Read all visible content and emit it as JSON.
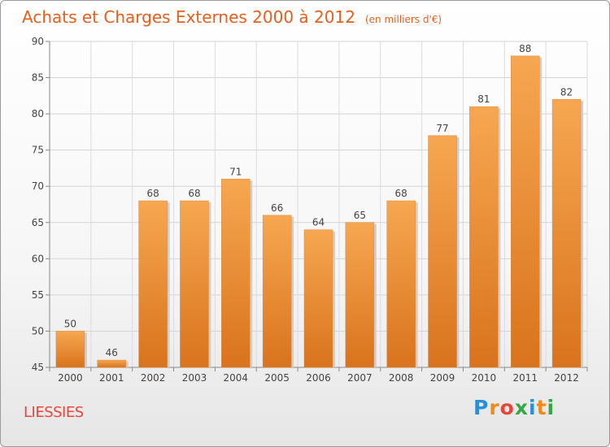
{
  "chart_data": {
    "type": "bar",
    "title": "Achats et Charges Externes 2000 à 2012",
    "unit_label": "(en milliers d'€)",
    "categories": [
      "2000",
      "2001",
      "2002",
      "2003",
      "2004",
      "2005",
      "2006",
      "2007",
      "2008",
      "2009",
      "2010",
      "2011",
      "2012"
    ],
    "values": [
      50,
      46,
      68,
      68,
      71,
      66,
      64,
      65,
      68,
      77,
      81,
      88,
      82
    ],
    "ylim": [
      45,
      90
    ],
    "yticks": [
      45,
      50,
      55,
      60,
      65,
      70,
      75,
      80,
      85,
      90
    ],
    "grid": true,
    "bar_color": "#f0902f",
    "xlabel": "",
    "ylabel": ""
  },
  "place_name": "LIESSIES",
  "logo_text": "Proxiti"
}
